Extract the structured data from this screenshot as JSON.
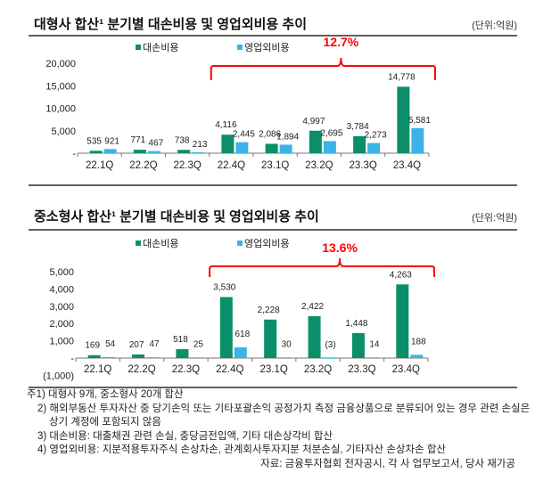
{
  "chart_data": [
    {
      "type": "bar",
      "title": "대형사 합산¹ 분기별 대손비용 및 영업외비용 추이",
      "unit": "(단위:억원)",
      "categories": [
        "22.1Q",
        "22.2Q",
        "22.3Q",
        "22.4Q",
        "23.1Q",
        "23.2Q",
        "23.3Q",
        "23.4Q"
      ],
      "series": [
        {
          "name": "대손비용",
          "color": "#0a8f6a",
          "values": [
            535,
            771,
            738,
            4116,
            2086,
            4997,
            3784,
            14778
          ],
          "labels": [
            "535",
            "771",
            "738",
            "4,116",
            "2,086",
            "4,997",
            "3,784",
            "14,778"
          ]
        },
        {
          "name": "영업외비용",
          "color": "#3cb3e6",
          "values": [
            921,
            467,
            213,
            2445,
            1894,
            2695,
            2273,
            5581
          ],
          "labels": [
            "921",
            "467",
            "213",
            "2,445",
            "1,894",
            "2,695",
            "2,273",
            "5,581"
          ]
        }
      ],
      "yticks": [
        "20,000",
        "15,000",
        "10,000",
        "5,000",
        "-"
      ],
      "ytick_values": [
        20000,
        15000,
        10000,
        5000,
        0
      ],
      "ylim": [
        0,
        20000
      ],
      "annotation": {
        "text": "12.7%",
        "color": "#ff0000",
        "from": "22.4Q",
        "to": "23.4Q"
      },
      "legend": "top",
      "grid": false
    },
    {
      "type": "bar",
      "title": "중소형사 합산¹ 분기별 대손비용 및 영업외비용 추이",
      "unit": "(단위:억원)",
      "categories": [
        "22.1Q",
        "22.2Q",
        "22.3Q",
        "22.4Q",
        "23.1Q",
        "23.2Q",
        "23.3Q",
        "23.4Q"
      ],
      "series": [
        {
          "name": "대손비용",
          "color": "#0a8f6a",
          "values": [
            169,
            207,
            518,
            3530,
            2228,
            2422,
            1448,
            4263
          ],
          "labels": [
            "169",
            "207",
            "518",
            "3,530",
            "2,228",
            "2,422",
            "1,448",
            "4,263"
          ]
        },
        {
          "name": "영업외비용",
          "color": "#3cb3e6",
          "values": [
            54,
            47,
            25,
            618,
            30,
            -3,
            14,
            188
          ],
          "labels": [
            "54",
            "47",
            "25",
            "618",
            "30",
            "(3)",
            "14",
            "188"
          ]
        }
      ],
      "yticks": [
        "5,000",
        "4,000",
        "3,000",
        "2,000",
        "1,000",
        "-",
        "(1,000)"
      ],
      "ytick_values": [
        5000,
        4000,
        3000,
        2000,
        1000,
        0,
        -1000
      ],
      "ylim": [
        -1000,
        5000
      ],
      "annotation": {
        "text": "13.6%",
        "color": "#ff0000",
        "from": "22.4Q",
        "to": "23.4Q"
      },
      "legend": "top",
      "grid": false
    }
  ],
  "notes": [
    "주1) 대형사 9개, 중소형사 20개 합산",
    "2) 해외부동산 투자자산 중 당기손익 또는 기타포괄손익 공정가치 측정 금융상품으로 분류되어 있는 경우 관련 손실은",
    "상기 계정에 포함되지 않음",
    "3) 대손비용: 대출채권 관련 손실, 충당금전입액, 기타 대손상각비 합산",
    "4) 영업외비용: 지분적용투자주식 손상차손, 관계회사투자지분 처분손실, 기타자산 손상차손 합산"
  ],
  "source": "자료: 금융투자협회 전자공시, 각 사 업무보고서, 당사 재가공"
}
